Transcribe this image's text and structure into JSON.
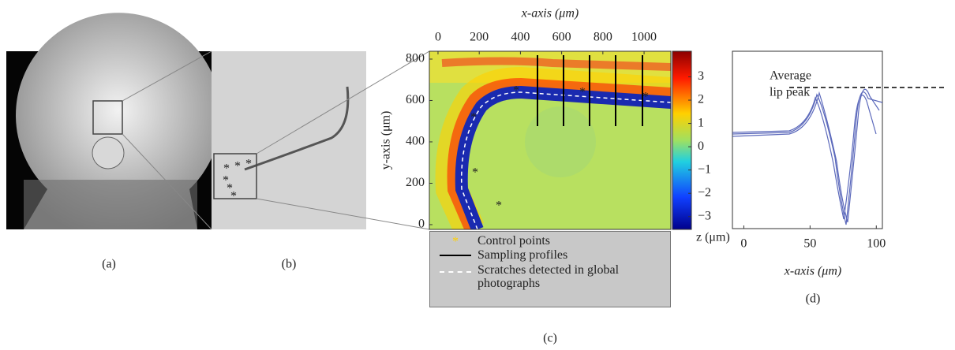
{
  "panel_a": {
    "label": "(a)"
  },
  "panel_b": {
    "label": "(b)"
  },
  "panel_c": {
    "label": "(c)",
    "x_axis_label": "x-axis (μm)",
    "y_axis_label": "y-axis (μm)",
    "colorbar_label": "z (μm)",
    "xlim": [
      -42,
      1130
    ],
    "xticks": [
      0,
      200,
      400,
      600,
      800,
      1000
    ],
    "ylim": [
      -23,
      838
    ],
    "yticks": [
      0,
      200,
      400,
      600,
      800
    ],
    "zlim": [
      -3.55,
      4.1
    ],
    "zticks": [
      3,
      2,
      1,
      0,
      {
        "value": -1,
        "label": "−1"
      },
      {
        "value": -2,
        "label": "−2"
      },
      {
        "value": -3,
        "label": "−3"
      }
    ],
    "legend": [
      "Control points",
      "Sampling profiles",
      "Scratches detected in global photographs"
    ]
  },
  "panel_d": {
    "label": "(d)",
    "x_axis_label": "x-axis (μm)",
    "xlim": [
      -8.6,
      104.6
    ],
    "xticks": [
      0,
      50,
      100
    ],
    "annotation": [
      "Average",
      "lip peak"
    ]
  }
}
